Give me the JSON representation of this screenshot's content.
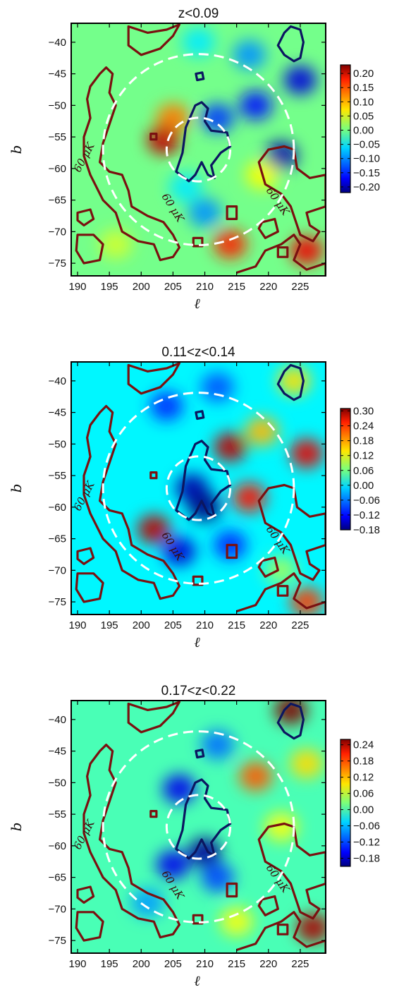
{
  "figure": {
    "colors": {
      "field": "#2ee6d6",
      "contour_hot": "#7a1010",
      "contour_cold": "#0b1660",
      "circle": "#ffffff"
    }
  },
  "chart_data": [
    {
      "type": "heatmap",
      "title": "z<0.09",
      "xlabel": "ℓ",
      "ylabel": "b",
      "xlim": [
        189,
        229
      ],
      "ylim": [
        -77,
        -37
      ],
      "xticks": [
        "190",
        "195",
        "200",
        "205",
        "210",
        "215",
        "220",
        "225"
      ],
      "yticks": [
        "-40",
        "-45",
        "-50",
        "-55",
        "-60",
        "-65",
        "-70",
        "-75"
      ],
      "colorbar": {
        "range": [
          -0.22,
          0.23
        ],
        "ticks": [
          "0.20",
          "0.15",
          "0.10",
          "0.05",
          "0.00",
          "-0.05",
          "-0.10",
          "-0.15",
          "-0.20"
        ]
      },
      "contour_label": "60 μK",
      "circles": [
        {
          "center": [
            209,
            -57
          ],
          "radius": 15,
          "style": "dashed"
        },
        {
          "center": [
            209,
            -57
          ],
          "radius": 5,
          "style": "dashed"
        }
      ],
      "blobs": [
        {
          "x": 205,
          "y": -52,
          "v": 0.12
        },
        {
          "x": 203.5,
          "y": -55.5,
          "v": 0.2
        },
        {
          "x": 212,
          "y": -52,
          "v": -0.14
        },
        {
          "x": 218,
          "y": -50,
          "v": -0.16
        },
        {
          "x": 222,
          "y": -58,
          "v": -0.2
        },
        {
          "x": 225,
          "y": -46,
          "v": -0.18
        },
        {
          "x": 217,
          "y": -42,
          "v": -0.1
        },
        {
          "x": 207,
          "y": -63,
          "v": -0.06
        },
        {
          "x": 214,
          "y": -72,
          "v": 0.16
        },
        {
          "x": 219,
          "y": -61,
          "v": 0.06
        },
        {
          "x": 226,
          "y": -73,
          "v": 0.18
        },
        {
          "x": 209,
          "y": -40,
          "v": -0.06
        },
        {
          "x": 196,
          "y": -72,
          "v": 0.04
        },
        {
          "x": 210,
          "y": -67,
          "v": -0.1
        }
      ]
    },
    {
      "type": "heatmap",
      "title": "0.11<z<0.14",
      "xlabel": "ℓ",
      "ylabel": "b",
      "xlim": [
        189,
        229
      ],
      "ylim": [
        -77,
        -37
      ],
      "xticks": [
        "190",
        "195",
        "200",
        "205",
        "210",
        "215",
        "220",
        "225"
      ],
      "yticks": [
        "-40",
        "-45",
        "-50",
        "-55",
        "-60",
        "-65",
        "-70",
        "-75"
      ],
      "colorbar": {
        "range": [
          -0.18,
          0.31
        ],
        "ticks": [
          "0.30",
          "0.24",
          "0.18",
          "0.12",
          "0.06",
          "0.00",
          "-0.06",
          "-0.12",
          "-0.18"
        ]
      },
      "contour_label": "60 μK",
      "circles": [
        {
          "center": [
            209,
            -57
          ],
          "radius": 15,
          "style": "dashed"
        },
        {
          "center": [
            209,
            -57
          ],
          "radius": 5,
          "style": "dashed"
        }
      ],
      "blobs": [
        {
          "x": 208,
          "y": -57,
          "v": -0.16
        },
        {
          "x": 210,
          "y": -60,
          "v": -0.18
        },
        {
          "x": 214,
          "y": -50.5,
          "v": 0.28
        },
        {
          "x": 202,
          "y": -63.5,
          "v": 0.28
        },
        {
          "x": 217,
          "y": -58.5,
          "v": 0.24
        },
        {
          "x": 219,
          "y": -48,
          "v": 0.16
        },
        {
          "x": 226,
          "y": -51.5,
          "v": 0.26
        },
        {
          "x": 224,
          "y": -40,
          "v": 0.14
        },
        {
          "x": 222,
          "y": -70,
          "v": 0.08
        },
        {
          "x": 206,
          "y": -67,
          "v": -0.14
        },
        {
          "x": 204,
          "y": -44,
          "v": -0.1
        },
        {
          "x": 214,
          "y": -66,
          "v": -0.1
        },
        {
          "x": 226,
          "y": -75,
          "v": 0.22
        },
        {
          "x": 212,
          "y": -41,
          "v": -0.08
        }
      ]
    },
    {
      "type": "heatmap",
      "title": "0.17<z<0.22",
      "xlabel": "ℓ",
      "ylabel": "b",
      "xlim": [
        189,
        229
      ],
      "ylim": [
        -77,
        -37
      ],
      "xticks": [
        "190",
        "195",
        "200",
        "205",
        "210",
        "215",
        "220",
        "225"
      ],
      "yticks": [
        "-40",
        "-45",
        "-50",
        "-55",
        "-60",
        "-65",
        "-70",
        "-75"
      ],
      "colorbar": {
        "range": [
          -0.21,
          0.26
        ],
        "ticks": [
          "0.24",
          "0.18",
          "0.12",
          "0.06",
          "0.00",
          "-0.06",
          "-0.12",
          "-0.18"
        ]
      },
      "contour_label": "60 μK",
      "circles": [
        {
          "center": [
            209,
            -57
          ],
          "radius": 15,
          "style": "dashed"
        },
        {
          "center": [
            209,
            -57
          ],
          "radius": 5,
          "style": "dashed"
        }
      ],
      "blobs": [
        {
          "x": 210,
          "y": -61,
          "v": -0.2
        },
        {
          "x": 206,
          "y": -51,
          "v": -0.16
        },
        {
          "x": 205,
          "y": -63,
          "v": -0.16
        },
        {
          "x": 212,
          "y": -65,
          "v": -0.12
        },
        {
          "x": 223.5,
          "y": -38.5,
          "v": 0.26
        },
        {
          "x": 218,
          "y": -49,
          "v": 0.16
        },
        {
          "x": 226,
          "y": -47,
          "v": 0.1
        },
        {
          "x": 222,
          "y": -57,
          "v": 0.08
        },
        {
          "x": 227,
          "y": -73,
          "v": 0.24
        },
        {
          "x": 212,
          "y": -44,
          "v": -0.1
        },
        {
          "x": 201,
          "y": -69,
          "v": -0.08
        },
        {
          "x": 215,
          "y": -72,
          "v": 0.08
        }
      ]
    }
  ]
}
